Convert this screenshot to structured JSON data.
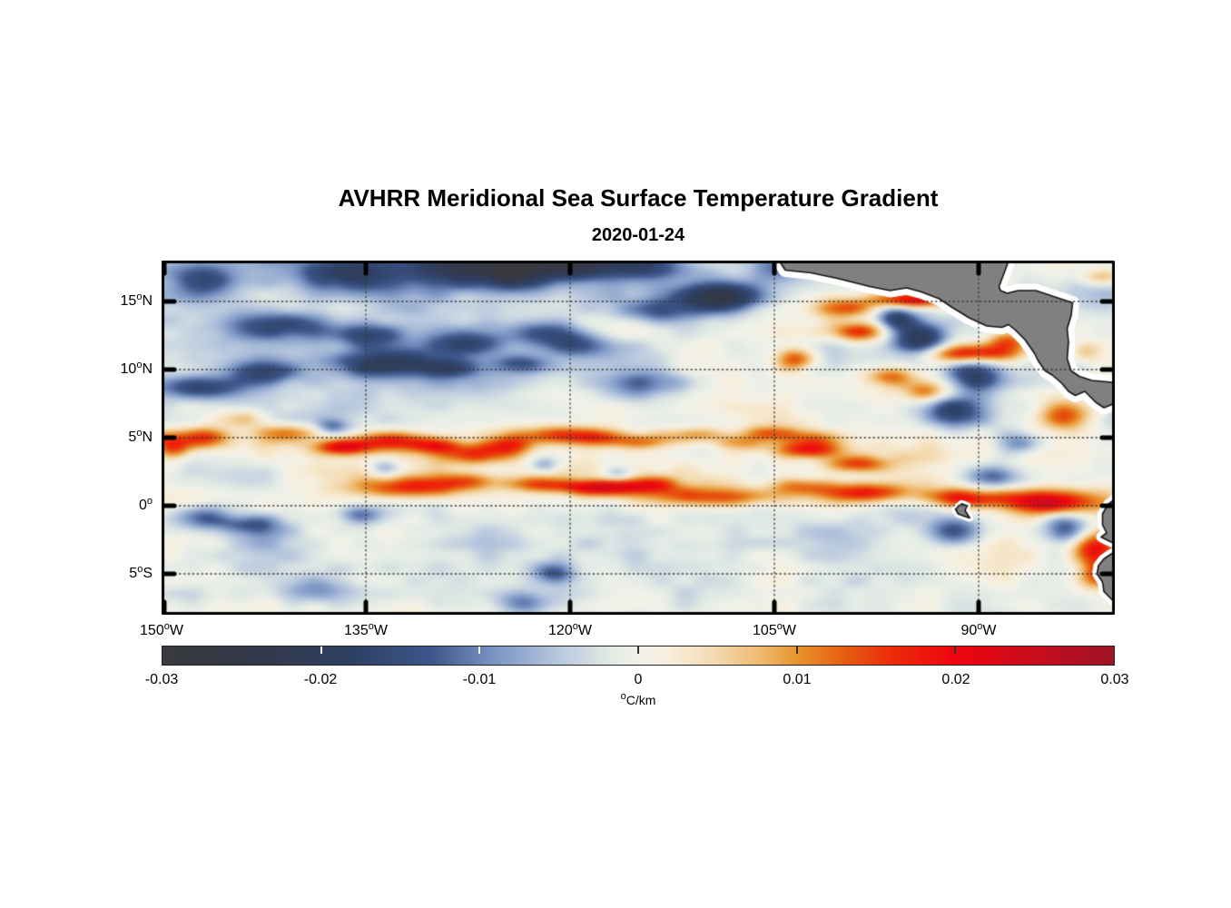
{
  "title": "AVHRR Meridional Sea Surface Temperature Gradient",
  "subtitle_date": "2020-01-24",
  "chart_data": {
    "type": "heatmap",
    "variable": "meridional sea surface temperature gradient",
    "units": "°C/km",
    "lon_range": [
      -150,
      -80
    ],
    "lat_range": [
      -8,
      18
    ],
    "grid_style": "dotted",
    "x_ticks": [
      {
        "value": "150",
        "deg": "o",
        "suffix": "W",
        "lon": -150
      },
      {
        "value": "135",
        "deg": "o",
        "suffix": "W",
        "lon": -135
      },
      {
        "value": "120",
        "deg": "o",
        "suffix": "W",
        "lon": -120
      },
      {
        "value": "105",
        "deg": "o",
        "suffix": "W",
        "lon": -105
      },
      {
        "value": "90",
        "deg": "o",
        "suffix": "W",
        "lon": -90
      }
    ],
    "y_ticks": [
      {
        "value": "15",
        "deg": "o",
        "suffix": "N",
        "lat": 15
      },
      {
        "value": "10",
        "deg": "o",
        "suffix": "N",
        "lat": 10
      },
      {
        "value": "5",
        "deg": "o",
        "suffix": "N",
        "lat": 5
      },
      {
        "value": "0",
        "deg": "o",
        "suffix": "",
        "lat": 0
      },
      {
        "value": "5",
        "deg": "o",
        "suffix": "S",
        "lat": -5
      }
    ],
    "colorbar": {
      "min": -0.03,
      "max": 0.03,
      "tick_labels": [
        "-0.03",
        "-0.02",
        "-0.01",
        "0",
        "0.01",
        "0.02",
        "0.03"
      ],
      "inner_tick_values": [
        -0.02,
        -0.01,
        0,
        0.01,
        0.02
      ],
      "unit_deg": "o",
      "unit_text": "C/km",
      "stops": [
        {
          "v": -0.03,
          "c": "#3a3a3e"
        },
        {
          "v": -0.024,
          "c": "#33394a"
        },
        {
          "v": -0.018,
          "c": "#2e4063"
        },
        {
          "v": -0.013,
          "c": "#3d568b"
        },
        {
          "v": -0.009,
          "c": "#7b95c4"
        },
        {
          "v": -0.005,
          "c": "#b8c8de"
        },
        {
          "v": -0.002,
          "c": "#dfe8e4"
        },
        {
          "v": 0.0,
          "c": "#f0f1e9"
        },
        {
          "v": 0.002,
          "c": "#f7eedb"
        },
        {
          "v": 0.005,
          "c": "#f3d9ae"
        },
        {
          "v": 0.008,
          "c": "#eeb569"
        },
        {
          "v": 0.01,
          "c": "#e8942e"
        },
        {
          "v": 0.013,
          "c": "#e55d11"
        },
        {
          "v": 0.016,
          "c": "#ec2c09"
        },
        {
          "v": 0.02,
          "c": "#ee050f"
        },
        {
          "v": 0.025,
          "c": "#c80d1d"
        },
        {
          "v": 0.03,
          "c": "#9d1326"
        }
      ]
    },
    "colors": {
      "land": "#808080",
      "coast_buffer": "#ffffff",
      "coastline": "#141414",
      "gridline": "#3a3a3a",
      "frame": "#000000"
    },
    "field": {
      "note": "features are estimated gaussian anomalies: [lon, lat, sigma_lon_deg, sigma_lat_deg, amplitude_degC_per_km]",
      "bias": {
        "north": -0.0018,
        "warm_band_gain": 0.0036,
        "warm_lat": 6.5,
        "south_drop": -0.002,
        "south_lat": 1.5,
        "width": 2.5
      },
      "noise": [
        {
          "scale_deg": 2.2,
          "amp": 0.0034,
          "stretch": 2.4,
          "seed": 11
        },
        {
          "scale_deg": 0.9,
          "amp": 0.0016,
          "stretch": 2.0,
          "seed": 29
        },
        {
          "scale_deg": 5.0,
          "amp": 0.0019,
          "stretch": 1.6,
          "seed": 53
        }
      ],
      "features": [
        [
          -146.8,
          16.4,
          1.6,
          0.8,
          -0.011
        ],
        [
          -141.0,
          13.1,
          2.6,
          0.7,
          -0.012
        ],
        [
          -136.3,
          16.9,
          2.3,
          0.9,
          -0.014
        ],
        [
          -128.7,
          17.6,
          3.2,
          1.1,
          -0.017
        ],
        [
          -124.3,
          16.9,
          1.6,
          0.8,
          -0.013
        ],
        [
          -121.5,
          17.6,
          2.5,
          0.9,
          -0.016
        ],
        [
          -118.6,
          17.7,
          2.2,
          0.8,
          -0.013
        ],
        [
          -114.5,
          17.6,
          2.0,
          0.8,
          -0.014
        ],
        [
          -109.6,
          15.2,
          2.1,
          0.8,
          -0.013
        ],
        [
          -114.0,
          14.2,
          2.5,
          0.6,
          -0.01
        ],
        [
          -108.3,
          15.3,
          2.0,
          0.7,
          -0.012
        ],
        [
          -135.0,
          12.4,
          1.7,
          0.6,
          -0.011
        ],
        [
          -127.4,
          11.8,
          1.9,
          0.7,
          -0.013
        ],
        [
          -121.8,
          12.6,
          2.0,
          0.6,
          -0.011
        ],
        [
          -119.3,
          11.7,
          1.5,
          0.6,
          -0.011
        ],
        [
          -134.3,
          10.4,
          2.3,
          0.7,
          -0.014
        ],
        [
          -142.4,
          9.7,
          1.6,
          0.6,
          -0.012
        ],
        [
          -129.0,
          10.1,
          1.6,
          0.5,
          -0.011
        ],
        [
          -123.6,
          10.3,
          1.5,
          0.5,
          -0.011
        ],
        [
          -146.9,
          8.6,
          2.3,
          0.55,
          -0.012
        ],
        [
          -113.6,
          9.0,
          2.0,
          0.7,
          -0.008
        ],
        [
          -96.2,
          13.6,
          1.0,
          0.8,
          -0.016
        ],
        [
          -94.4,
          12.2,
          1.4,
          1.0,
          -0.019
        ],
        [
          -92.2,
          7.0,
          1.6,
          0.8,
          -0.015
        ],
        [
          -90.4,
          9.7,
          1.4,
          0.9,
          -0.017
        ],
        [
          -87.2,
          4.6,
          1.2,
          0.6,
          -0.011
        ],
        [
          -89.2,
          2.2,
          1.4,
          0.6,
          -0.012
        ],
        [
          -91.8,
          -1.8,
          1.5,
          0.7,
          -0.016
        ],
        [
          -83.6,
          -1.6,
          1.3,
          0.9,
          -0.016
        ],
        [
          -147.1,
          -0.8,
          1.3,
          0.6,
          -0.012
        ],
        [
          -143.6,
          -1.3,
          1.6,
          0.5,
          -0.01
        ],
        [
          -135.3,
          -0.6,
          1.1,
          0.5,
          -0.011
        ],
        [
          -121.1,
          -4.8,
          1.0,
          0.5,
          -0.011
        ],
        [
          -123.6,
          -7.1,
          1.3,
          0.6,
          -0.01
        ],
        [
          -137.4,
          5.8,
          0.8,
          0.4,
          -0.009
        ],
        [
          -104.8,
          17.3,
          1.3,
          0.7,
          -0.009
        ],
        [
          -133.5,
          2.8,
          0.9,
          0.5,
          -0.01
        ],
        [
          -121.8,
          3.0,
          0.8,
          0.4,
          -0.009
        ],
        [
          -116.5,
          2.4,
          0.8,
          0.4,
          -0.008
        ],
        [
          -138.5,
          -6.0,
          2.0,
          0.7,
          -0.007
        ],
        [
          -140.0,
          10.4,
          6.0,
          1.6,
          -0.004
        ],
        [
          -130.0,
          10.8,
          5.0,
          1.5,
          -0.0035
        ],
        [
          -146.0,
          13.5,
          4.0,
          1.5,
          -0.003
        ],
        [
          -135.0,
          17.0,
          8.0,
          1.6,
          -0.004
        ],
        [
          -119.0,
          16.5,
          6.0,
          1.4,
          -0.003
        ],
        [
          -141.0,
          -2.6,
          8.0,
          2.0,
          -0.0022
        ],
        [
          -124.0,
          -3.2,
          8.0,
          2.0,
          -0.0022
        ],
        [
          -107.0,
          -2.6,
          8.0,
          2.0,
          -0.0018
        ],
        [
          -150.0,
          5.0,
          1.2,
          0.5,
          0.012
        ],
        [
          -149.0,
          4.2,
          0.9,
          0.5,
          0.013
        ],
        [
          -146.8,
          5.0,
          1.4,
          0.55,
          0.018
        ],
        [
          -143.8,
          6.4,
          1.2,
          0.5,
          0.01
        ],
        [
          -140.6,
          5.3,
          1.9,
          0.5,
          0.012
        ],
        [
          -136.6,
          4.3,
          1.6,
          0.4,
          0.021
        ],
        [
          -133.3,
          4.9,
          1.9,
          0.45,
          0.014
        ],
        [
          -129.9,
          4.4,
          1.6,
          0.4,
          0.013
        ],
        [
          -127.0,
          3.7,
          1.6,
          0.5,
          0.014
        ],
        [
          -124.4,
          4.4,
          1.3,
          0.5,
          0.013
        ],
        [
          -121.3,
          5.2,
          2.1,
          0.5,
          0.015
        ],
        [
          -117.9,
          5.0,
          1.6,
          0.45,
          0.013
        ],
        [
          -114.4,
          4.7,
          1.6,
          0.4,
          0.011
        ],
        [
          -110.9,
          5.2,
          1.6,
          0.4,
          0.011
        ],
        [
          -107.9,
          4.6,
          1.3,
          0.4,
          0.01
        ],
        [
          -105.2,
          5.3,
          1.6,
          0.4,
          0.011
        ],
        [
          -102.0,
          4.9,
          1.5,
          0.45,
          0.01
        ],
        [
          -102.5,
          4.1,
          1.6,
          0.4,
          0.016
        ],
        [
          -99.0,
          3.1,
          1.6,
          0.45,
          0.015
        ],
        [
          -131.4,
          1.4,
          3.0,
          0.5,
          0.013
        ],
        [
          -127.4,
          1.9,
          1.6,
          0.45,
          0.012
        ],
        [
          -122.5,
          1.6,
          1.6,
          0.4,
          0.01
        ],
        [
          -118.0,
          1.4,
          2.1,
          0.4,
          0.021
        ],
        [
          -114.2,
          1.6,
          1.6,
          0.4,
          0.013
        ],
        [
          -109.2,
          0.7,
          3.5,
          0.5,
          0.015
        ],
        [
          -103.0,
          1.5,
          1.6,
          0.45,
          0.011
        ],
        [
          -98.2,
          1.0,
          2.4,
          0.5,
          0.018
        ],
        [
          -91.2,
          0.6,
          2.0,
          0.5,
          0.019
        ],
        [
          -85.3,
          0.3,
          2.4,
          0.6,
          0.021
        ],
        [
          -81.6,
          -3.0,
          1.2,
          0.8,
          0.019
        ],
        [
          -81.4,
          -4.9,
          1.0,
          0.8,
          0.016
        ],
        [
          -95.1,
          15.0,
          2.0,
          0.4,
          0.021
        ],
        [
          -100.3,
          14.4,
          1.7,
          0.5,
          0.015
        ],
        [
          -98.6,
          12.7,
          2.0,
          0.5,
          0.017
        ],
        [
          -90.6,
          11.1,
          2.8,
          0.5,
          0.021
        ],
        [
          -87.9,
          12.1,
          1.1,
          0.5,
          0.013
        ],
        [
          -83.6,
          6.6,
          1.4,
          0.8,
          0.015
        ],
        [
          -96.6,
          9.4,
          1.2,
          0.5,
          0.012
        ],
        [
          -93.9,
          8.3,
          1.2,
          0.5,
          0.012
        ],
        [
          -103.6,
          10.7,
          1.0,
          0.6,
          0.015
        ],
        [
          -81.0,
          16.6,
          1.2,
          0.4,
          0.009
        ],
        [
          -82.3,
          11.3,
          0.8,
          0.5,
          0.008
        ],
        [
          -107.0,
          10.0,
          4.0,
          2.0,
          0.003
        ]
      ]
    },
    "land_polygons": {
      "central_america": [
        [
          -104.9,
          18.4
        ],
        [
          -104.2,
          17.3
        ],
        [
          -102.3,
          17.1
        ],
        [
          -100.4,
          16.7
        ],
        [
          -98.0,
          16.1
        ],
        [
          -96.5,
          15.8
        ],
        [
          -95.3,
          16.0
        ],
        [
          -94.2,
          15.7
        ],
        [
          -92.9,
          15.2
        ],
        [
          -92.0,
          14.6
        ],
        [
          -90.7,
          13.8
        ],
        [
          -89.4,
          13.2
        ],
        [
          -88.3,
          13.1
        ],
        [
          -87.8,
          13.3
        ],
        [
          -87.3,
          12.9
        ],
        [
          -86.6,
          12.2
        ],
        [
          -85.9,
          11.2
        ],
        [
          -85.6,
          10.6
        ],
        [
          -85.1,
          9.9
        ],
        [
          -84.6,
          9.6
        ],
        [
          -83.9,
          9.0
        ],
        [
          -83.4,
          8.4
        ],
        [
          -82.9,
          8.1
        ],
        [
          -82.2,
          8.4
        ],
        [
          -81.4,
          7.6
        ],
        [
          -80.8,
          7.2
        ],
        [
          -80.3,
          7.4
        ],
        [
          -79.8,
          7.7
        ],
        [
          -79.8,
          9.0
        ],
        [
          -80.6,
          9.1
        ],
        [
          -81.7,
          9.2
        ],
        [
          -82.6,
          9.5
        ],
        [
          -83.2,
          9.9
        ],
        [
          -83.5,
          10.8
        ],
        [
          -83.4,
          12.0
        ],
        [
          -83.5,
          13.0
        ],
        [
          -83.2,
          14.0
        ],
        [
          -83.1,
          14.9
        ],
        [
          -84.3,
          15.3
        ],
        [
          -85.8,
          15.8
        ],
        [
          -87.1,
          15.8
        ],
        [
          -87.9,
          15.6
        ],
        [
          -88.4,
          15.8
        ],
        [
          -88.5,
          16.1
        ],
        [
          -88.2,
          16.9
        ],
        [
          -87.9,
          17.7
        ],
        [
          -87.7,
          18.4
        ]
      ],
      "ecuador": [
        [
          -79.0,
          1.0
        ],
        [
          -79.7,
          0.9
        ],
        [
          -80.1,
          0.4
        ],
        [
          -80.5,
          0.1
        ],
        [
          -80.9,
          -0.6
        ],
        [
          -80.9,
          -1.4
        ],
        [
          -80.6,
          -2.0
        ],
        [
          -81.0,
          -2.3
        ],
        [
          -80.4,
          -2.6
        ],
        [
          -79.7,
          -2.9
        ],
        [
          -79.0,
          -3.0
        ]
      ],
      "peru": [
        [
          -79.0,
          -3.2
        ],
        [
          -79.7,
          -3.3
        ],
        [
          -80.2,
          -3.5
        ],
        [
          -80.8,
          -3.9
        ],
        [
          -81.2,
          -4.4
        ],
        [
          -81.3,
          -5.0
        ],
        [
          -80.9,
          -5.6
        ],
        [
          -80.8,
          -6.3
        ],
        [
          -80.2,
          -6.9
        ],
        [
          -79.8,
          -7.3
        ],
        [
          -79.0,
          -7.4
        ]
      ],
      "galapagos": [
        [
          -91.7,
          -0.25
        ],
        [
          -91.25,
          0.15
        ],
        [
          -90.85,
          0.0
        ],
        [
          -91.0,
          -0.35
        ],
        [
          -90.65,
          -0.9
        ],
        [
          -91.1,
          -0.75
        ],
        [
          -91.5,
          -0.6
        ]
      ]
    }
  }
}
